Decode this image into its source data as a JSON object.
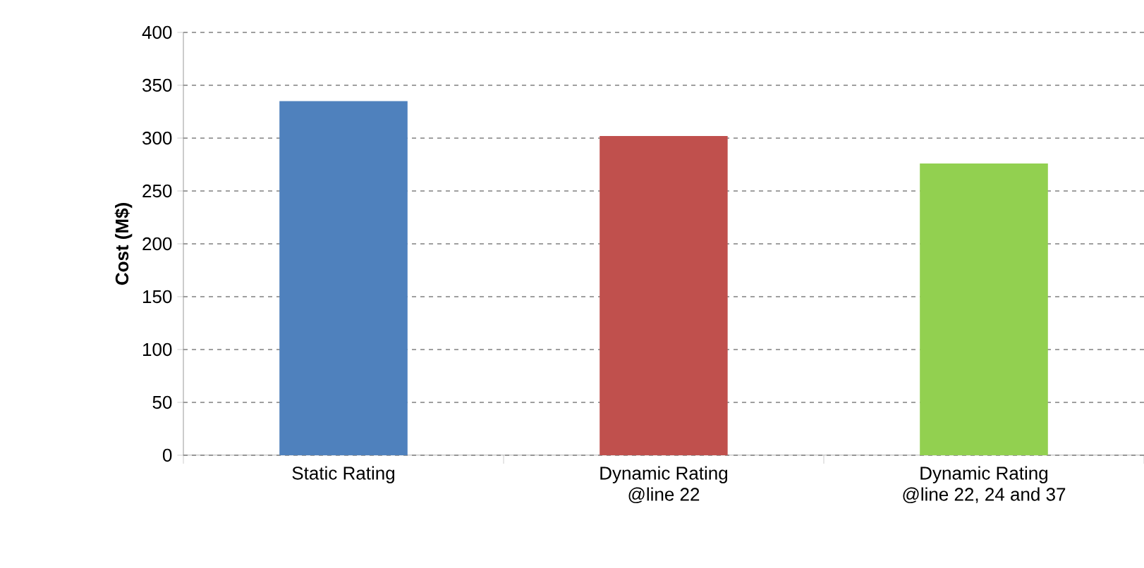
{
  "chart_data": {
    "type": "bar",
    "ylabel": "Cost (M$)",
    "categories": [
      "Static Rating",
      "Dynamic Rating\n@line 22",
      "Dynamic Rating\n@line 22, 24 and 37"
    ],
    "values": [
      335,
      302,
      276
    ],
    "colors": [
      "#4f81bd",
      "#c0504d",
      "#92d050"
    ],
    "ylim": [
      0,
      400
    ],
    "yticks": [
      0,
      50,
      100,
      150,
      200,
      250,
      300,
      350,
      400
    ],
    "grid": "y"
  }
}
